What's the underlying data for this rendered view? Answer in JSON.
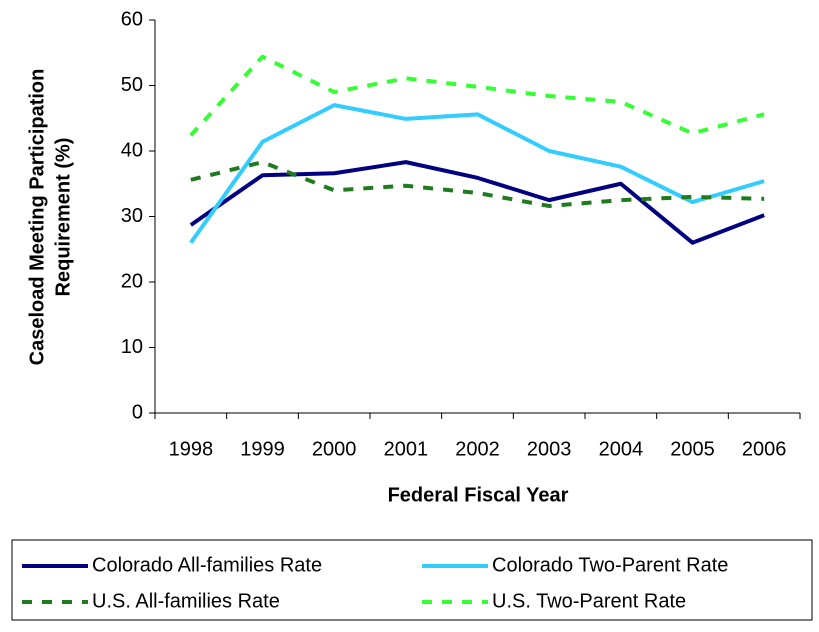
{
  "chart_data": {
    "type": "line",
    "x_label": "Federal Fiscal Year",
    "y_label": [
      "Caseload Meeting Participation",
      "Requirement (%)"
    ],
    "categories": [
      "1998",
      "1999",
      "2000",
      "2001",
      "2002",
      "2003",
      "2004",
      "2005",
      "2006"
    ],
    "ylim": [
      0,
      60
    ],
    "yticks": [
      0,
      10,
      20,
      30,
      40,
      50,
      60
    ],
    "series": [
      {
        "name": "Colorado All-families Rate",
        "color": "#000080",
        "dashed": false,
        "values": [
          28.7,
          36.3,
          36.6,
          38.3,
          35.9,
          32.5,
          35.0,
          26.0,
          30.2
        ]
      },
      {
        "name": "Colorado Two-Parent Rate",
        "color": "#33ccff",
        "dashed": false,
        "values": [
          26.0,
          41.4,
          47.0,
          44.9,
          45.6,
          40.0,
          37.6,
          32.2,
          35.4
        ]
      },
      {
        "name": "U.S. All-families Rate",
        "color": "#1e7b1e",
        "dashed": true,
        "values": [
          35.6,
          38.3,
          34.0,
          34.7,
          33.6,
          31.6,
          32.5,
          33.0,
          32.7
        ]
      },
      {
        "name": "U.S. Two-Parent Rate",
        "color": "#33ff33",
        "dashed": true,
        "values": [
          42.4,
          54.4,
          49.0,
          51.1,
          49.8,
          48.4,
          47.5,
          42.7,
          45.6
        ]
      }
    ]
  }
}
